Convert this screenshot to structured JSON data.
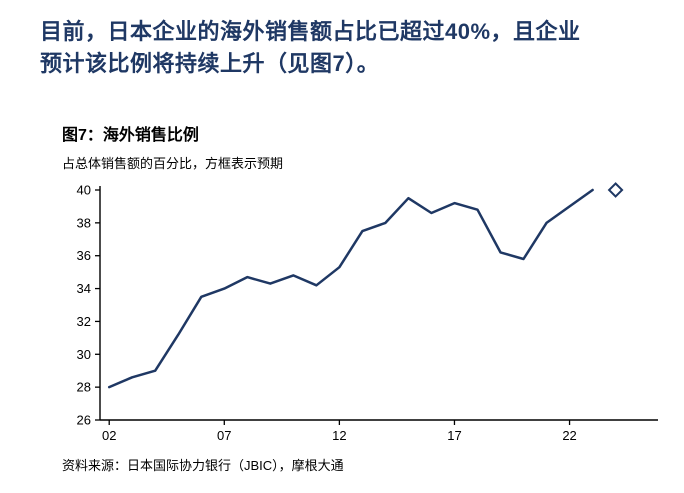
{
  "intro": {
    "text": "目前，日本企业的海外销售额占比已超过40%，且企业\n预计该比例将持续上升（见图7）。"
  },
  "figure": {
    "title": "图7：海外销售比例",
    "subtitle": "占总体销售额的百分比，方框表示预期",
    "source": "资料来源：日本国际协力银行（JBIC），摩根大通"
  },
  "colors": {
    "accent_navy": "#1F3864",
    "axis_black": "#000000",
    "background": "#FFFFFF"
  },
  "chart_data": {
    "type": "line",
    "title": "图7：海外销售比例",
    "subtitle": "占总体销售额的百分比，方框表示预期",
    "source": "资料来源：日本国际协力银行（JBIC），摩根大通",
    "x": [
      2002,
      2003,
      2004,
      2005,
      2006,
      2007,
      2008,
      2009,
      2010,
      2011,
      2012,
      2013,
      2014,
      2015,
      2016,
      2017,
      2018,
      2019,
      2020,
      2021,
      2022,
      2023
    ],
    "values": [
      28.0,
      28.6,
      29.0,
      31.2,
      33.5,
      34.0,
      34.7,
      34.3,
      34.8,
      34.2,
      35.3,
      37.5,
      38.0,
      39.5,
      38.6,
      39.2,
      38.8,
      36.2,
      35.8,
      38.0,
      39.0,
      40.0
    ],
    "forecast": {
      "x": 2024,
      "y": 40.0,
      "marker": "open-diamond"
    },
    "xticks": [
      "02",
      "07",
      "12",
      "17",
      "22"
    ],
    "xtick_values": [
      2002,
      2007,
      2012,
      2017,
      2022
    ],
    "xlim": [
      2001.6,
      2024.8
    ],
    "ylim": [
      26,
      40
    ],
    "ytick_step": 2,
    "grid": false,
    "legend": "none",
    "line_color": "#1F3864",
    "axis_color": "#000000"
  }
}
